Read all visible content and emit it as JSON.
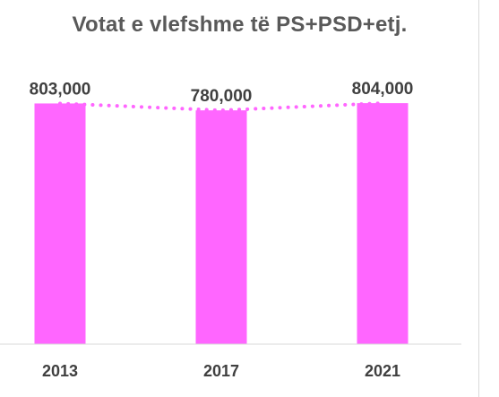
{
  "chart_data": {
    "type": "bar",
    "title": "Votat e vlefshme të PS+PSD+etj.",
    "categories": [
      "2013",
      "2017",
      "2021"
    ],
    "values": [
      803000,
      780000,
      804000
    ],
    "data_labels": [
      "803,000",
      "780,000",
      "804,000"
    ],
    "xlabel": "",
    "ylabel": "",
    "ylim": [
      0,
      900000
    ],
    "grid": false,
    "legend": "none",
    "trendline": "dotted",
    "colors": {
      "bar": "#ff66ff",
      "trendline": "#ff66ff",
      "text": "#404040",
      "title": "#595959",
      "axis": "#d9d9d9"
    }
  }
}
